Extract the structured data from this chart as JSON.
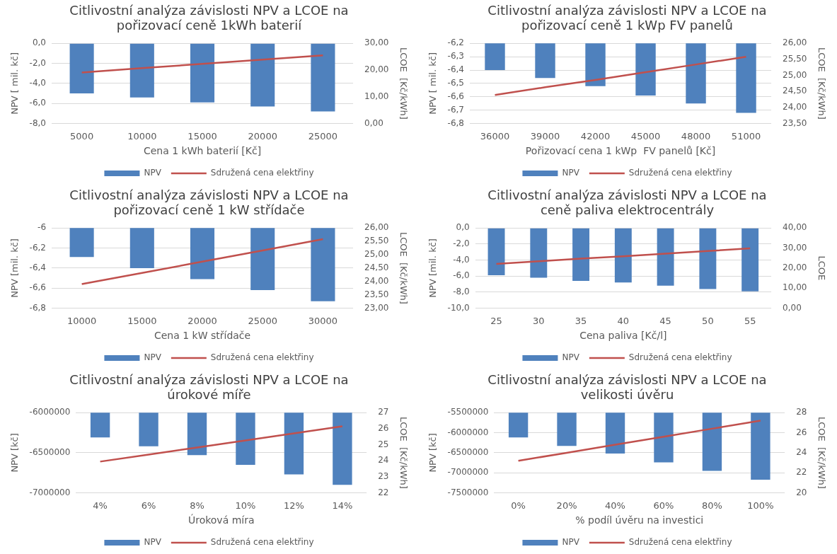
{
  "chart_data": [
    {
      "type": "bar",
      "title": "Citlivostní analýza závislosti NPV a LCOE na pořizovací ceně 1kWh baterií",
      "xlabel": "Cena 1 kWh baterií [Kč]",
      "ylabel": "NPV [ mil. kč]",
      "y2label": "LCOE  [Kč/kWh]",
      "categories": [
        "5000",
        "10000",
        "15000",
        "20000",
        "25000"
      ],
      "series": [
        {
          "name": "NPV",
          "color": "#4f81bd",
          "values": [
            -5.0,
            -5.4,
            -5.9,
            -6.3,
            -6.8
          ]
        },
        {
          "name": "Sdružená cena elektřiny",
          "type": "line",
          "axis": "y2",
          "color": "#c0504d",
          "values": [
            19.1,
            20.7,
            22.3,
            23.9,
            25.5
          ]
        }
      ],
      "ylim": [
        -8,
        0
      ],
      "yticks": [
        {
          "value": 0,
          "label": "0,0"
        },
        {
          "value": -2,
          "label": "-2,0"
        },
        {
          "value": -4,
          "label": "-4,0"
        },
        {
          "value": -6,
          "label": "-6,0"
        },
        {
          "value": -8,
          "label": "-8,0"
        }
      ],
      "y2lim": [
        0,
        30
      ],
      "y2ticks": [
        {
          "value": 30,
          "label": "30,00"
        },
        {
          "value": 20,
          "label": "20,00"
        },
        {
          "value": 10,
          "label": "10,00"
        },
        {
          "value": 0,
          "label": "0,00"
        }
      ],
      "grid": "y",
      "legend": "bottom"
    },
    {
      "type": "bar",
      "title": "Citlivostní analýza závislosti NPV a LCOE na pořizovací ceně 1 kWp FV panelů",
      "xlabel": "Pořizovací cena 1 kWp  FV panelů [Kč]",
      "ylabel": "NPV [ mil. kč]",
      "y2label": "LCOE  [Kč/kWh]",
      "categories": [
        "36000",
        "39000",
        "42000",
        "45000",
        "48000",
        "51000"
      ],
      "series": [
        {
          "name": "NPV",
          "color": "#4f81bd",
          "values": [
            -6.4,
            -6.46,
            -6.52,
            -6.59,
            -6.65,
            -6.72
          ]
        },
        {
          "name": "Sdružená cena elektřiny",
          "type": "line",
          "axis": "y2",
          "color": "#c0504d",
          "values": [
            24.39,
            24.63,
            24.86,
            25.1,
            25.34,
            25.58
          ]
        }
      ],
      "ylim": [
        -6.8,
        -6.2
      ],
      "yticks": [
        {
          "value": -6.2,
          "label": "-6,2"
        },
        {
          "value": -6.3,
          "label": "-6,3"
        },
        {
          "value": -6.4,
          "label": "-6,4"
        },
        {
          "value": -6.5,
          "label": "-6,5"
        },
        {
          "value": -6.6,
          "label": "-6,6"
        },
        {
          "value": -6.7,
          "label": "-6,7"
        },
        {
          "value": -6.8,
          "label": "-6,8"
        }
      ],
      "y2lim": [
        23.5,
        26
      ],
      "y2ticks": [
        {
          "value": 26,
          "label": "26,00"
        },
        {
          "value": 25.5,
          "label": "25,50"
        },
        {
          "value": 25,
          "label": "25,00"
        },
        {
          "value": 24.5,
          "label": "24,50"
        },
        {
          "value": 24,
          "label": "24,00"
        },
        {
          "value": 23.5,
          "label": "23,50"
        }
      ],
      "grid": "y",
      "legend": "bottom"
    },
    {
      "type": "bar",
      "title": "Citlivostní analýza závislosti NPV a LCOE na pořizovací ceně 1 kW střídače",
      "xlabel": "Cena 1 kW střídače",
      "ylabel": "NPV [mil. kč]",
      "y2label": "LCOE  [Kč/kWh]",
      "categories": [
        "10000",
        "15000",
        "20000",
        "25000",
        "30000"
      ],
      "series": [
        {
          "name": "NPV",
          "color": "#4f81bd",
          "values": [
            -6.29,
            -6.4,
            -6.51,
            -6.62,
            -6.73
          ]
        },
        {
          "name": "Sdružená cena elektřiny",
          "type": "line",
          "axis": "y2",
          "color": "#c0504d",
          "values": [
            23.9,
            24.32,
            24.74,
            25.16,
            25.58
          ]
        }
      ],
      "ylim": [
        -6.8,
        -6
      ],
      "yticks": [
        -6,
        {
          "value": -6.2,
          "label": "-6,2"
        },
        {
          "value": -6.4,
          "label": "-6,4"
        },
        {
          "value": -6.6,
          "label": "-6,6"
        },
        {
          "value": -6.8,
          "label": "-6,8"
        }
      ],
      "y2lim": [
        23,
        26
      ],
      "y2ticks": [
        {
          "value": 26,
          "label": "26,00"
        },
        {
          "value": 25.5,
          "label": "25,50"
        },
        {
          "value": 25,
          "label": "25,00"
        },
        {
          "value": 24.5,
          "label": "24,50"
        },
        {
          "value": 24,
          "label": "24,00"
        },
        {
          "value": 23.5,
          "label": "23,50"
        },
        {
          "value": 23,
          "label": "23,00"
        }
      ],
      "grid": "y",
      "legend": "bottom"
    },
    {
      "type": "bar",
      "title": "Citlivostní analýza závislosti NPV a LCOE na ceně paliva elektrocentrály",
      "xlabel": "Cena paliva [Kč/l]",
      "ylabel": "NPV [mil. kč]",
      "y2label": "LCOE",
      "categories": [
        "25",
        "30",
        "35",
        "40",
        "45",
        "50",
        "55"
      ],
      "series": [
        {
          "name": "NPV",
          "color": "#4f81bd",
          "values": [
            -5.9,
            -6.2,
            -6.6,
            -6.8,
            -7.2,
            -7.6,
            -7.9
          ]
        },
        {
          "name": "Sdružená cena elektřiny",
          "type": "line",
          "axis": "y2",
          "color": "#c0504d",
          "values": [
            22.1,
            23.4,
            24.7,
            25.9,
            27.2,
            28.5,
            29.8
          ]
        }
      ],
      "ylim": [
        -10,
        0
      ],
      "yticks": [
        {
          "value": 0,
          "label": "0,0"
        },
        {
          "value": -2,
          "label": "-2,0"
        },
        {
          "value": -4,
          "label": "-4,0"
        },
        {
          "value": -6,
          "label": "-6,0"
        },
        {
          "value": -8,
          "label": "-8,0"
        },
        {
          "value": -10,
          "label": "-10,0"
        }
      ],
      "y2lim": [
        0,
        40
      ],
      "y2ticks": [
        {
          "value": 40,
          "label": "40,00"
        },
        {
          "value": 30,
          "label": "30,00"
        },
        {
          "value": 20,
          "label": "20,00"
        },
        {
          "value": 10,
          "label": "10,00"
        },
        {
          "value": 0,
          "label": "0,00"
        }
      ],
      "grid": "y",
      "legend": "bottom"
    },
    {
      "type": "bar",
      "title": "Citlivostní analýza závislosti NPV a LCOE na úrokové míře",
      "xlabel": "Úroková míra",
      "ylabel": "NPV [kč]",
      "y2label": "LCOE  [Kč/kWh]",
      "categories": [
        "4%",
        "6%",
        "8%",
        "10%",
        "12%",
        "14%"
      ],
      "series": [
        {
          "name": "NPV",
          "color": "#4f81bd",
          "values": [
            -6310000,
            -6420000,
            -6530000,
            -6650000,
            -6770000,
            -6900000
          ]
        },
        {
          "name": "Sdružená cena elektřiny",
          "type": "line",
          "axis": "y2",
          "color": "#c0504d",
          "values": [
            23.95,
            24.39,
            24.83,
            25.27,
            25.71,
            26.15
          ]
        }
      ],
      "ylim": [
        -7000000,
        -6000000
      ],
      "yticks": [
        -6000000,
        -6500000,
        -7000000
      ],
      "y2lim": [
        22,
        27
      ],
      "y2ticks": [
        27,
        26,
        25,
        24,
        23,
        22
      ],
      "grid": "y",
      "legend": "bottom"
    },
    {
      "type": "bar",
      "title": "Citlivostní analýza závislosti NPV a LCOE na velikosti úvěru",
      "xlabel": "% podíl úvěru na investici",
      "ylabel": "NPV [kč]",
      "y2label": "LCOE  [Kč/kWh]",
      "categories": [
        "0%",
        "20%",
        "40%",
        "60%",
        "80%",
        "100%"
      ],
      "series": [
        {
          "name": "NPV",
          "color": "#4f81bd",
          "values": [
            -6120000,
            -6330000,
            -6520000,
            -6740000,
            -6950000,
            -7170000
          ]
        },
        {
          "name": "Sdružená cena elektřiny",
          "type": "line",
          "axis": "y2",
          "color": "#c0504d",
          "values": [
            23.2,
            24.0,
            24.8,
            25.6,
            26.4,
            27.2
          ]
        }
      ],
      "ylim": [
        -7500000,
        -5500000
      ],
      "yticks": [
        -5500000,
        -6000000,
        -6500000,
        -7000000,
        -7500000
      ],
      "y2lim": [
        20,
        28
      ],
      "y2ticks": [
        28,
        26,
        24,
        22,
        20
      ],
      "grid": "y",
      "legend": "bottom"
    }
  ]
}
